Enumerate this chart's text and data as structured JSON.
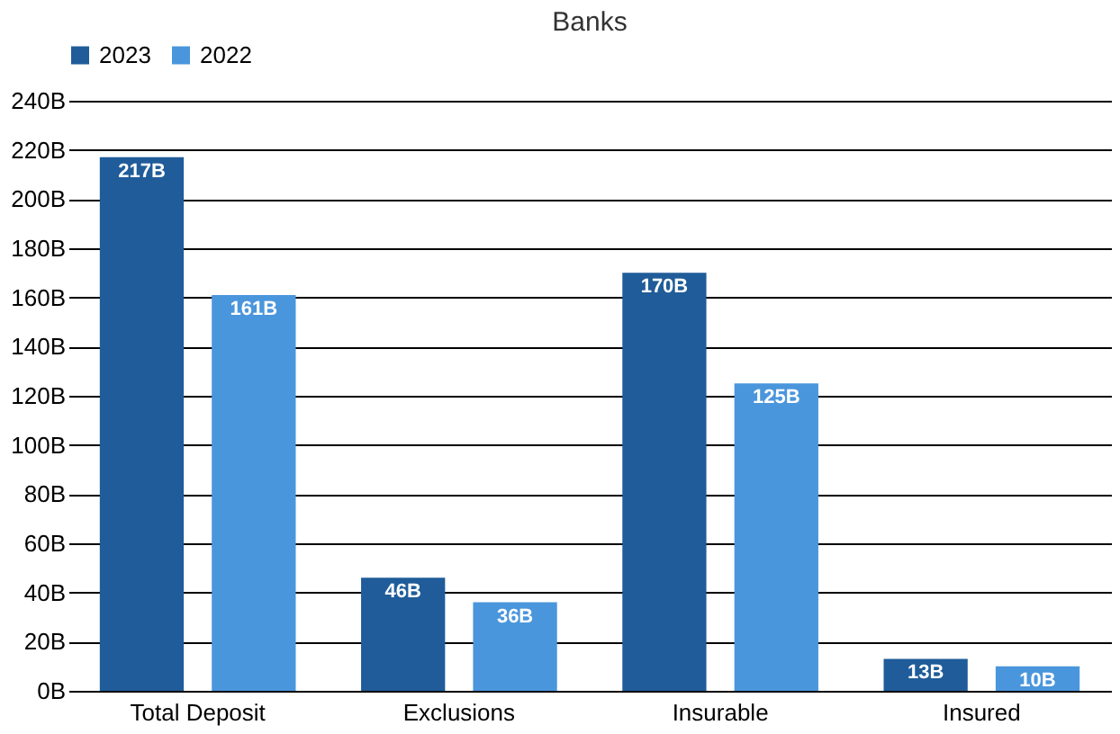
{
  "chart_data": {
    "type": "bar",
    "title": "Banks",
    "categories": [
      "Total Deposit",
      "Exclusions",
      "Insurable",
      "Insured"
    ],
    "series": [
      {
        "name": "2023",
        "color": "#1f5c99",
        "values": [
          217,
          46,
          170,
          13
        ],
        "value_labels": [
          "217B",
          "46B",
          "170B",
          "13B"
        ]
      },
      {
        "name": "2022",
        "color": "#4a96dc",
        "values": [
          161,
          36,
          125,
          10
        ],
        "value_labels": [
          "161B",
          "36B",
          "125B",
          "10B"
        ]
      }
    ],
    "ylim": [
      0,
      240
    ],
    "yticks": [
      {
        "value": 0,
        "label": "0B"
      },
      {
        "value": 20,
        "label": "20B"
      },
      {
        "value": 40,
        "label": "40B"
      },
      {
        "value": 60,
        "label": "60B"
      },
      {
        "value": 80,
        "label": "80B"
      },
      {
        "value": 100,
        "label": "100B"
      },
      {
        "value": 120,
        "label": "120B"
      },
      {
        "value": 140,
        "label": "140B"
      },
      {
        "value": 160,
        "label": "160B"
      },
      {
        "value": 180,
        "label": "180B"
      },
      {
        "value": 200,
        "label": "200B"
      },
      {
        "value": 220,
        "label": "220B"
      },
      {
        "value": 240,
        "label": "240B"
      }
    ],
    "grid": "y",
    "legend": "top"
  }
}
